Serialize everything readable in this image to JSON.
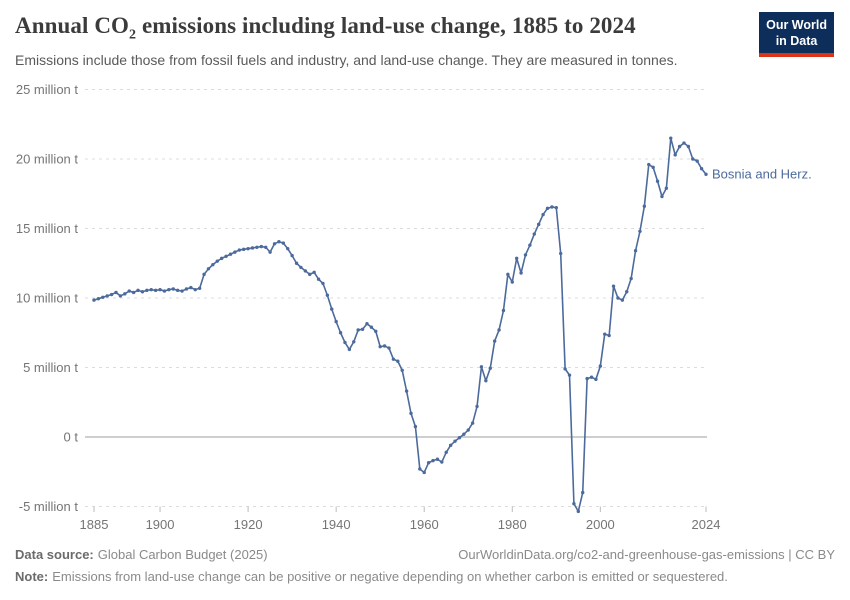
{
  "header": {
    "title_pre": "Annual CO",
    "title_sub": "2",
    "title_post": " emissions including land-use change, 1885 to 2024",
    "subtitle": "Emissions include those from fossil fuels and industry, and land-use change. They are measured in tonnes."
  },
  "logo": {
    "line1": "Our World",
    "line2": "in Data",
    "bg_color": "#0d2e5a",
    "accent_color": "#dc3218"
  },
  "chart_data": {
    "type": "line",
    "title": "Annual CO₂ emissions including land-use change, 1885 to 2024",
    "ylabel": "",
    "xlabel": "",
    "unit": "million tonnes of CO₂",
    "grid": true,
    "xlim": [
      1885,
      2024
    ],
    "ylim": [
      -5,
      25
    ],
    "x_ticks": [
      1885,
      1900,
      1920,
      1940,
      1960,
      1980,
      2000,
      2024
    ],
    "y_ticks": [
      {
        "value": 25,
        "label": "25 million t"
      },
      {
        "value": 20,
        "label": "20 million t"
      },
      {
        "value": 15,
        "label": "15 million t"
      },
      {
        "value": 10,
        "label": "10 million t"
      },
      {
        "value": 5,
        "label": "5 million t"
      },
      {
        "value": 0,
        "label": "0 t"
      },
      {
        "value": -5,
        "label": "-5 million t"
      }
    ],
    "line_color": "#4C6A9C",
    "grid_color": "#dcdcdc",
    "zero_line_color": "#9e9e9e",
    "axis_text_color": "#757575",
    "series": [
      {
        "name": "Bosnia and Herz.",
        "start_year": 1885,
        "end_year": 2024,
        "values": [
          9.85,
          9.95,
          10.05,
          10.15,
          10.25,
          10.4,
          10.15,
          10.3,
          10.5,
          10.4,
          10.55,
          10.45,
          10.55,
          10.6,
          10.55,
          10.6,
          10.5,
          10.6,
          10.65,
          10.55,
          10.5,
          10.65,
          10.75,
          10.6,
          10.7,
          11.7,
          12.1,
          12.4,
          12.65,
          12.85,
          13.0,
          13.15,
          13.3,
          13.45,
          13.5,
          13.55,
          13.6,
          13.65,
          13.7,
          13.65,
          13.3,
          13.9,
          14.05,
          13.95,
          13.55,
          13.05,
          12.5,
          12.2,
          11.95,
          11.7,
          11.85,
          11.35,
          11.05,
          10.2,
          9.2,
          8.3,
          7.5,
          6.8,
          6.3,
          6.85,
          7.7,
          7.75,
          8.15,
          7.9,
          7.6,
          6.5,
          6.55,
          6.4,
          5.6,
          5.45,
          4.8,
          3.3,
          1.7,
          0.75,
          -2.3,
          -2.55,
          -1.85,
          -1.7,
          -1.6,
          -1.8,
          -1.1,
          -0.6,
          -0.3,
          -0.05,
          0.2,
          0.5,
          1.0,
          2.2,
          5.05,
          4.05,
          4.95,
          6.9,
          7.7,
          9.1,
          11.7,
          11.15,
          12.85,
          11.8,
          13.1,
          13.8,
          14.6,
          15.3,
          16.0,
          16.45,
          16.55,
          16.5,
          13.2,
          4.9,
          4.45,
          -4.8,
          -5.35,
          -4.0,
          4.2,
          4.3,
          4.15,
          5.1,
          7.4,
          7.3,
          10.85,
          10.0,
          9.85,
          10.45,
          11.4,
          13.4,
          14.8,
          16.6,
          19.6,
          19.4,
          18.4,
          17.3,
          17.9,
          21.5,
          20.3,
          20.9,
          21.15,
          20.9,
          20.0,
          19.85,
          19.3,
          18.9
        ]
      }
    ],
    "end_label": "Bosnia and Herz.",
    "legend_position": "end-of-line"
  },
  "footer": {
    "source_label": "Data source:",
    "source_value": "Global Carbon Budget (2025)",
    "credit": "OurWorldinData.org/co2-and-greenhouse-gas-emissions | CC BY",
    "note_label": "Note:",
    "note_value": "Emissions from land-use change can be positive or negative depending on whether carbon is emitted or sequestered."
  }
}
